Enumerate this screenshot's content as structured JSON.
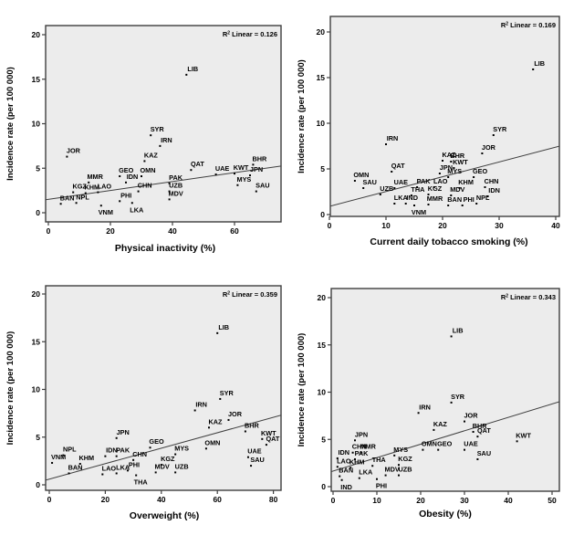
{
  "figure": {
    "background": "#ffffff",
    "plot_background": "#ececec",
    "border_color": "#3f3f3f",
    "marker_color": "#000000",
    "trend_color": "#3f3f3f",
    "r2_prefix": "R",
    "r2_exponent": "2",
    "r2_mid": " Linear = "
  },
  "chart_data": [
    {
      "type": "scatter",
      "title": "",
      "xlabel": "Physical inactivity (%)",
      "ylabel": "Incidence rate (per 100 000)",
      "r2": "0.126",
      "xlim": [
        0,
        75
      ],
      "ylim": [
        0,
        21
      ],
      "xticks": [
        0,
        20,
        40,
        60
      ],
      "yticks": [
        0,
        5,
        10,
        15,
        20
      ],
      "grid": false,
      "trend": {
        "intercept": 1.5,
        "slope": 0.05
      },
      "points": [
        {
          "c": "BAN",
          "x": 4,
          "y": 1.0
        },
        {
          "c": "JOR",
          "x": 6,
          "y": 6.3
        },
        {
          "c": "KGZ",
          "x": 8,
          "y": 2.3
        },
        {
          "c": "NPL",
          "x": 9,
          "y": 1.1
        },
        {
          "c": "KHM",
          "x": 12,
          "y": 2.2
        },
        {
          "c": "MMR",
          "x": 13,
          "y": 3.4
        },
        {
          "c": "LAO",
          "x": 16,
          "y": 2.3
        },
        {
          "c": "VNM",
          "x": 17,
          "y": 0.8,
          "lp": "b"
        },
        {
          "c": "GEO",
          "x": 23,
          "y": 4.1
        },
        {
          "c": "PHI",
          "x": 23,
          "y": 1.3
        },
        {
          "c": "IDN",
          "x": 25,
          "y": 3.4
        },
        {
          "c": "LKA",
          "x": 27,
          "y": 1.1,
          "lp": "b"
        },
        {
          "c": "CHN",
          "x": 29,
          "y": 2.4
        },
        {
          "c": "OMN",
          "x": 30,
          "y": 4.1
        },
        {
          "c": "KAZ",
          "x": 31,
          "y": 5.8
        },
        {
          "c": "SYR",
          "x": 33,
          "y": 8.7
        },
        {
          "c": "IRN",
          "x": 36,
          "y": 7.5
        },
        {
          "c": "PAK",
          "x": 39,
          "y": 3.3
        },
        {
          "c": "UZB",
          "x": 39,
          "y": 2.4
        },
        {
          "c": "MDV",
          "x": 39,
          "y": 1.5
        },
        {
          "c": "QAT",
          "x": 46,
          "y": 4.8
        },
        {
          "c": "LIB",
          "x": 44.5,
          "y": 15.5
        },
        {
          "c": "UAE",
          "x": 54,
          "y": 4.3
        },
        {
          "c": "KWT",
          "x": 60,
          "y": 4.4
        },
        {
          "c": "MYS",
          "x": 61,
          "y": 3.1
        },
        {
          "c": "JPN",
          "x": 65,
          "y": 4.2
        },
        {
          "c": "BHR",
          "x": 66,
          "y": 5.4
        },
        {
          "c": "SAU",
          "x": 67,
          "y": 2.4
        }
      ]
    },
    {
      "type": "scatter",
      "title": "",
      "xlabel": "Current daily tobacco smoking (%)",
      "ylabel": "Incidence rate (per 100 000)",
      "r2": "0.169",
      "xlim": [
        0,
        41
      ],
      "ylim": [
        0,
        21
      ],
      "xticks": [
        0,
        10,
        20,
        30,
        40
      ],
      "yticks": [
        0,
        5,
        10,
        15,
        20
      ],
      "grid": false,
      "trend": {
        "intercept": 0.9,
        "slope": 0.162
      },
      "points": [
        {
          "c": "OMN",
          "x": 4.5,
          "y": 3.7
        },
        {
          "c": "SAU",
          "x": 6,
          "y": 2.9
        },
        {
          "c": "UZB",
          "x": 9,
          "y": 2.2
        },
        {
          "c": "IRN",
          "x": 10,
          "y": 7.7
        },
        {
          "c": "QAT",
          "x": 11,
          "y": 4.7
        },
        {
          "c": "UAE",
          "x": 11.5,
          "y": 2.9
        },
        {
          "c": "LKA",
          "x": 11.5,
          "y": 1.2
        },
        {
          "c": "IND",
          "x": 13.5,
          "y": 1.2
        },
        {
          "c": "THA",
          "x": 14.5,
          "y": 2.1
        },
        {
          "c": "VNM",
          "x": 15,
          "y": 1.0,
          "lp": "b"
        },
        {
          "c": "PAK",
          "x": 15.5,
          "y": 3.0
        },
        {
          "c": "KGZ",
          "x": 17.5,
          "y": 2.2
        },
        {
          "c": "MMR",
          "x": 17.5,
          "y": 1.1
        },
        {
          "c": "LAO",
          "x": 18.5,
          "y": 3.0
        },
        {
          "c": "JPN",
          "x": 19.5,
          "y": 4.5
        },
        {
          "c": "KAZ",
          "x": 20,
          "y": 5.9
        },
        {
          "c": "MYS",
          "x": 21,
          "y": 4.1
        },
        {
          "c": "BHR",
          "x": 21.5,
          "y": 5.8
        },
        {
          "c": "KWT",
          "x": 22,
          "y": 5.1
        },
        {
          "c": "MDV",
          "x": 21.5,
          "y": 2.1
        },
        {
          "c": "BAN",
          "x": 21,
          "y": 1.0
        },
        {
          "c": "KHM",
          "x": 23,
          "y": 2.9
        },
        {
          "c": "PHI",
          "x": 23.5,
          "y": 1.0
        },
        {
          "c": "GEO",
          "x": 25.5,
          "y": 4.1
        },
        {
          "c": "NPL",
          "x": 26,
          "y": 1.2
        },
        {
          "c": "JOR",
          "x": 27,
          "y": 6.7
        },
        {
          "c": "CHN",
          "x": 27.5,
          "y": 3.0
        },
        {
          "c": "IDN",
          "x": 28,
          "y": 2.0
        },
        {
          "c": "SYR",
          "x": 29,
          "y": 8.7
        },
        {
          "c": "LIB",
          "x": 36,
          "y": 15.9
        }
      ]
    },
    {
      "type": "scatter",
      "title": "",
      "xlabel": "Overweight (%)",
      "ylabel": "Incidence rate (per 100 000)",
      "r2": "0.359",
      "xlim": [
        0,
        83
      ],
      "ylim": [
        0,
        21
      ],
      "xticks": [
        0,
        20,
        40,
        60,
        80
      ],
      "yticks": [
        0,
        5,
        10,
        15,
        20
      ],
      "grid": false,
      "trend": {
        "intercept": 0.6,
        "slope": 0.081
      },
      "points": [
        {
          "c": "VNM",
          "x": 1,
          "y": 2.3
        },
        {
          "c": "NPL",
          "x": 5,
          "y": 3.1
        },
        {
          "c": "BAN",
          "x": 7,
          "y": 1.2
        },
        {
          "c": "KHM",
          "x": 11,
          "y": 2.2
        },
        {
          "c": "LAO",
          "x": 19,
          "y": 1.1
        },
        {
          "c": "IDN",
          "x": 20,
          "y": 3.0
        },
        {
          "c": "JPN",
          "x": 24,
          "y": 4.9
        },
        {
          "c": "PAK",
          "x": 24,
          "y": 3.0
        },
        {
          "c": "LKA",
          "x": 24,
          "y": 1.2
        },
        {
          "c": "PHI",
          "x": 28,
          "y": 1.5
        },
        {
          "c": "CHN",
          "x": 30,
          "y": 2.6
        },
        {
          "c": "THA",
          "x": 31,
          "y": 1.0,
          "lp": "b"
        },
        {
          "c": "GEO",
          "x": 36,
          "y": 3.9
        },
        {
          "c": "MDV",
          "x": 38,
          "y": 1.3
        },
        {
          "c": "KGZ",
          "x": 40,
          "y": 2.1
        },
        {
          "c": "MYS",
          "x": 45,
          "y": 3.2
        },
        {
          "c": "UZB",
          "x": 45,
          "y": 1.3
        },
        {
          "c": "IRN",
          "x": 52,
          "y": 7.8
        },
        {
          "c": "OMN",
          "x": 56,
          "y": 3.8
        },
        {
          "c": "KAZ",
          "x": 57,
          "y": 6.0
        },
        {
          "c": "LIB",
          "x": 60,
          "y": 15.9
        },
        {
          "c": "SYR",
          "x": 61,
          "y": 9.0
        },
        {
          "c": "JOR",
          "x": 64,
          "y": 6.8
        },
        {
          "c": "BHR",
          "x": 70,
          "y": 5.6
        },
        {
          "c": "UAE",
          "x": 71,
          "y": 2.9
        },
        {
          "c": "SAU",
          "x": 72,
          "y": 2.0
        },
        {
          "c": "KWT",
          "x": 76,
          "y": 4.8
        },
        {
          "c": "QAT",
          "x": 77.5,
          "y": 4.2
        }
      ]
    },
    {
      "type": "scatter",
      "title": "",
      "xlabel": "Obesity (%)",
      "ylabel": "Incidence rate (per 100 000)",
      "r2": "0.343",
      "xlim": [
        0,
        53
      ],
      "ylim": [
        0,
        21
      ],
      "xticks": [
        0,
        10,
        20,
        30,
        40,
        50
      ],
      "yticks": [
        0,
        5,
        10,
        15,
        20
      ],
      "grid": false,
      "trend": {
        "intercept": 1.65,
        "slope": 0.142
      },
      "points": [
        {
          "c": "IDN",
          "x": 1,
          "y": 3.0
        },
        {
          "c": "LAO",
          "x": 1,
          "y": 2.1
        },
        {
          "c": "BAN",
          "x": 1.5,
          "y": 1.1
        },
        {
          "c": "IND",
          "x": 2,
          "y": 0.7,
          "lp": "b"
        },
        {
          "c": "KHM",
          "x": 4,
          "y": 2.0
        },
        {
          "c": "CHN",
          "x": 4.5,
          "y": 3.6
        },
        {
          "c": "JPN",
          "x": 5,
          "y": 4.9
        },
        {
          "c": "PAK",
          "x": 5,
          "y": 2.9
        },
        {
          "c": "LKA",
          "x": 6,
          "y": 0.9
        },
        {
          "c": "MMR",
          "x": 6.5,
          "y": 3.6
        },
        {
          "c": "THA",
          "x": 9,
          "y": 2.2
        },
        {
          "c": "PHI",
          "x": 10,
          "y": 0.8,
          "lp": "b"
        },
        {
          "c": "MDV",
          "x": 12,
          "y": 1.2
        },
        {
          "c": "MYS",
          "x": 14,
          "y": 3.3
        },
        {
          "c": "KGZ",
          "x": 15,
          "y": 2.3
        },
        {
          "c": "UZB",
          "x": 15,
          "y": 1.2
        },
        {
          "c": "IRN",
          "x": 19.5,
          "y": 7.8
        },
        {
          "c": "OMN",
          "x": 20.5,
          "y": 3.9
        },
        {
          "c": "KAZ",
          "x": 23,
          "y": 6.0
        },
        {
          "c": "GEO",
          "x": 24,
          "y": 3.9
        },
        {
          "c": "LIB",
          "x": 27,
          "y": 15.9
        },
        {
          "c": "SYR",
          "x": 27,
          "y": 8.9
        },
        {
          "c": "JOR",
          "x": 30,
          "y": 6.9
        },
        {
          "c": "UAE",
          "x": 30,
          "y": 3.9
        },
        {
          "c": "BHR",
          "x": 32,
          "y": 5.8
        },
        {
          "c": "QAT",
          "x": 33,
          "y": 5.3
        },
        {
          "c": "SAU",
          "x": 33,
          "y": 2.9
        },
        {
          "c": "KWT",
          "x": 42,
          "y": 4.8
        }
      ]
    }
  ]
}
